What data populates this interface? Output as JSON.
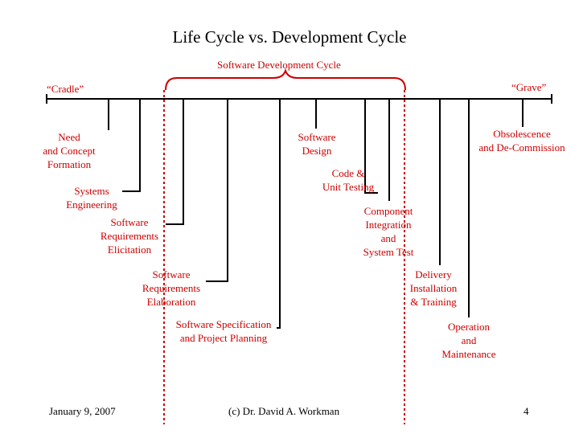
{
  "slide": {
    "title": "Life Cycle vs. Development Cycle",
    "bracket_label": "Software Development Cycle",
    "cradle": "“Cradle”",
    "grave": "“Grave”"
  },
  "phases": {
    "need": "Need\nand Concept\nFormation",
    "systems": "Systems\nEngineering",
    "req_elicitation": "Software\nRequirements\nElicitation",
    "req_elaboration": "Software\nRequirements\nElaboration",
    "spec_planning": "Software Specification\nand Project Planning",
    "design": "Software\nDesign",
    "code_test": "Code &\nUnit Testing",
    "integration": "Component\nIntegration\nand\nSystem Test",
    "delivery": "Delivery\nInstallation\n& Training",
    "operation": "Operation\nand\nMaintenance",
    "obsolescence": "Obsolescence\nand De-Commission"
  },
  "footer": {
    "date": "January 9, 2007",
    "author": "(c) Dr. David A. Workman",
    "page": "4"
  },
  "colors": {
    "accent_red": "#cc0000",
    "line": "#000000"
  }
}
